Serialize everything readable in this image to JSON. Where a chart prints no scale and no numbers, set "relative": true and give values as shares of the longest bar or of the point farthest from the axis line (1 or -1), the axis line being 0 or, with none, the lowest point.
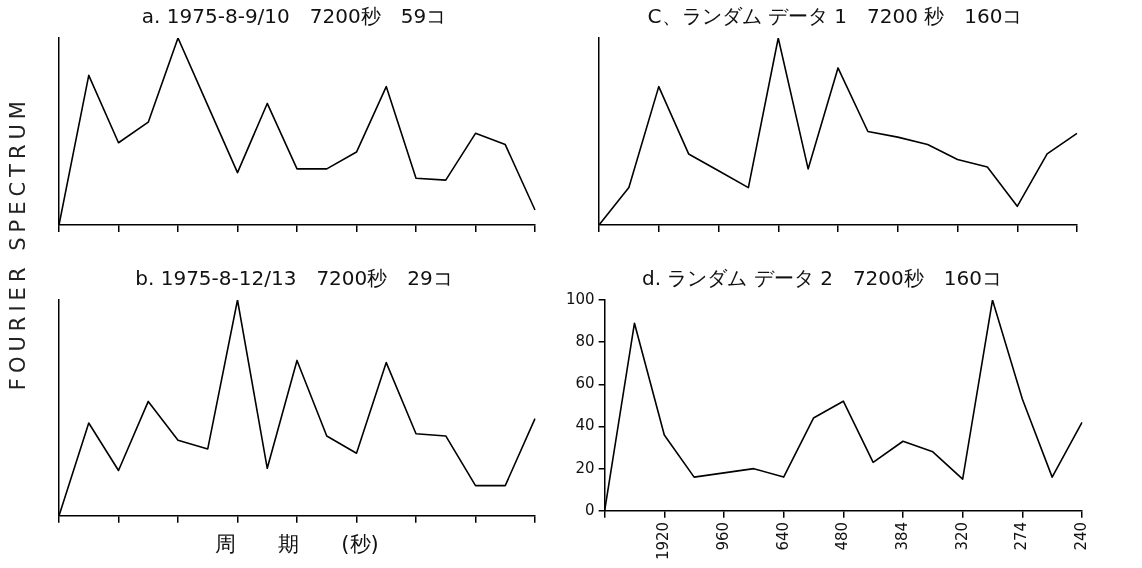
{
  "chart_data": [
    {
      "type": "line",
      "title": "a. 1975-8-9/10　7200秒　59コ",
      "ylabel": "FOURIER SPECTRUM",
      "relative": true,
      "tick_labels": false,
      "marker": "none",
      "color": "#000000",
      "categories": [
        null,
        null,
        null,
        null,
        null,
        null,
        null,
        null,
        null,
        null,
        null,
        null,
        null,
        null,
        null,
        null,
        null
      ],
      "values": [
        0,
        0.8,
        0.44,
        0.55,
        1,
        0.64,
        0.28,
        0.65,
        0.3,
        0.3,
        0.39,
        0.74,
        0.25,
        0.24,
        0.49,
        0.43,
        0.08
      ]
    },
    {
      "type": "line",
      "title": "C、ランダム データ 1　7200 秒　160コ",
      "relative": true,
      "tick_labels": false,
      "marker": "none",
      "color": "#000000",
      "categories": [
        null,
        null,
        null,
        null,
        null,
        null,
        null,
        null,
        null,
        null,
        null,
        null,
        null,
        null,
        null,
        null,
        null
      ],
      "values": [
        0,
        0.2,
        0.74,
        0.38,
        0.29,
        0.2,
        1,
        0.3,
        0.84,
        0.5,
        0.47,
        0.43,
        0.35,
        0.31,
        0.1,
        0.38,
        0.49
      ]
    },
    {
      "type": "line",
      "title": "b. 1975-8-12/13　7200秒　29コ",
      "xlabel": "周　　期　　(秒)",
      "relative": true,
      "tick_labels": false,
      "marker": "none",
      "color": "#000000",
      "categories": [
        null,
        null,
        null,
        null,
        null,
        null,
        null,
        null,
        null,
        null,
        null,
        null,
        null,
        null,
        null,
        null,
        null
      ],
      "values": [
        0,
        0.43,
        0.21,
        0.53,
        0.35,
        0.31,
        1,
        0.22,
        0.72,
        0.37,
        0.29,
        0.71,
        0.38,
        0.37,
        0.14,
        0.14,
        0.45
      ]
    },
    {
      "type": "line",
      "title": "d. ランダム データ 2　7200秒　160コ",
      "marker": "none",
      "color": "#000000",
      "ylim": [
        0,
        100
      ],
      "yticks": [
        0,
        20,
        40,
        60,
        80,
        100
      ],
      "categories": [
        null,
        null,
        "1920",
        null,
        "960",
        null,
        "640",
        null,
        "480",
        null,
        "384",
        null,
        "320",
        null,
        "274",
        null,
        "240"
      ],
      "values": [
        0,
        89,
        36,
        16,
        18,
        20,
        16,
        44,
        52,
        23,
        33,
        28,
        15,
        100,
        53,
        16,
        42
      ]
    }
  ]
}
